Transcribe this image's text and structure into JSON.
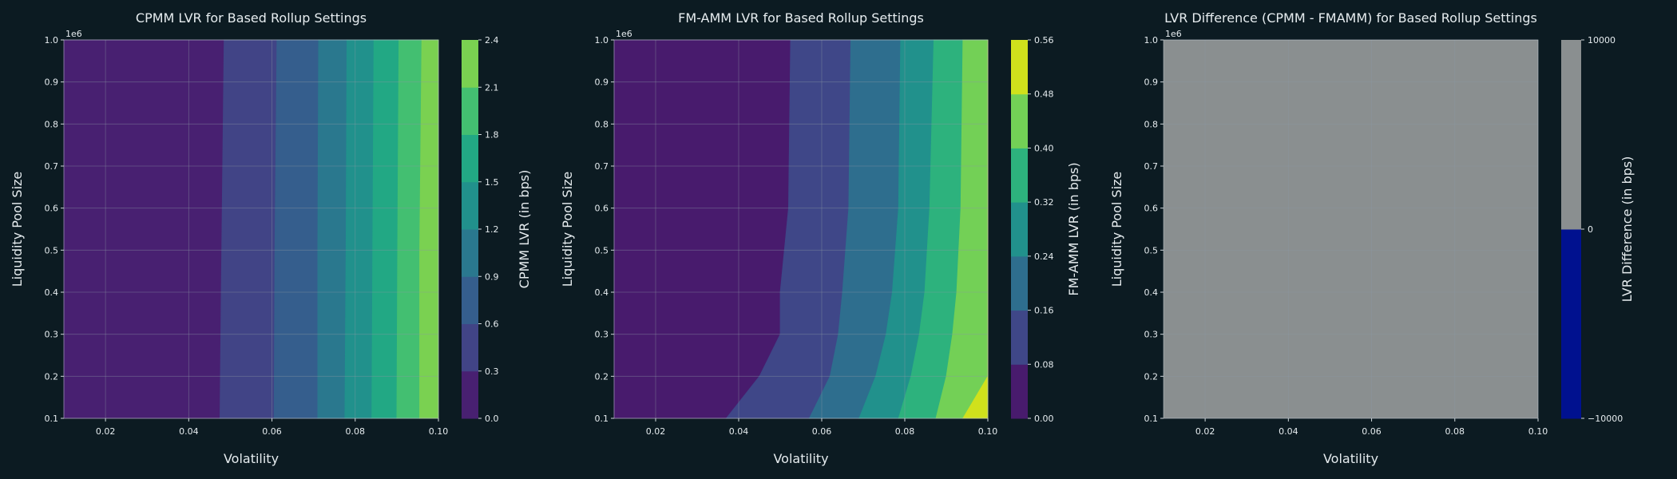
{
  "theme": {
    "background": "#0c1b22",
    "text": "#e6ecef",
    "grid": "#8c9aa3",
    "spine": "#cfd6da",
    "diff_gray": "#8a8f90",
    "diff_blue": "#00118f"
  },
  "chart_data": [
    {
      "type": "heatmap",
      "title": "CPMM LVR for Based Rollup Settings",
      "xlabel": "Volatility",
      "ylabel": "Liquidity Pool Size",
      "y_offset_label": "1e6",
      "colorbar_label": "CPMM LVR (in bps)",
      "x_ticks": [
        "0.02",
        "0.04",
        "0.06",
        "0.08",
        "0.10"
      ],
      "y_ticks": [
        "0.1",
        "0.2",
        "0.3",
        "0.4",
        "0.5",
        "0.6",
        "0.7",
        "0.8",
        "0.9",
        "1.0"
      ],
      "colorbar_ticks": [
        "0.0",
        "0.3",
        "0.6",
        "0.9",
        "1.2",
        "1.5",
        "1.8",
        "2.1",
        "2.4"
      ],
      "xlim": [
        0.01,
        0.1
      ],
      "ylim": [
        0.1,
        1.0
      ],
      "levels": [
        0.0,
        0.3,
        0.6,
        0.9,
        1.2,
        1.5,
        1.8,
        2.1,
        2.4
      ],
      "colors": [
        "#482071",
        "#414486",
        "#355e8d",
        "#2a788e",
        "#21918c",
        "#22a884",
        "#43bf71",
        "#7ad151",
        "#d7e219"
      ],
      "contours": [
        {
          "level": 0.3,
          "points": [
            [
              0.0475,
              0.1
            ],
            [
              0.0478,
              0.4
            ],
            [
              0.0485,
              1.0
            ]
          ]
        },
        {
          "level": 0.6,
          "points": [
            [
              0.0605,
              0.1
            ],
            [
              0.0607,
              0.5
            ],
            [
              0.0612,
              1.0
            ]
          ]
        },
        {
          "level": 0.9,
          "points": [
            [
              0.071,
              0.1
            ],
            [
              0.071,
              0.5
            ],
            [
              0.0712,
              1.0
            ]
          ]
        },
        {
          "level": 1.2,
          "points": [
            [
              0.0775,
              0.1
            ],
            [
              0.0778,
              0.5
            ],
            [
              0.078,
              1.0
            ]
          ]
        },
        {
          "level": 1.5,
          "points": [
            [
              0.084,
              0.1
            ],
            [
              0.0842,
              0.5
            ],
            [
              0.0845,
              1.0
            ]
          ]
        },
        {
          "level": 1.8,
          "points": [
            [
              0.09,
              0.1
            ],
            [
              0.0902,
              0.5
            ],
            [
              0.0905,
              1.0
            ]
          ]
        },
        {
          "level": 2.1,
          "points": [
            [
              0.0955,
              0.1
            ],
            [
              0.0955,
              0.5
            ],
            [
              0.096,
              1.0
            ]
          ]
        }
      ]
    },
    {
      "type": "heatmap",
      "title": "FM-AMM LVR for Based Rollup Settings",
      "xlabel": "Volatility",
      "ylabel": "Liquidity Pool Size",
      "y_offset_label": "1e6",
      "colorbar_label": "FM-AMM LVR (in bps)",
      "x_ticks": [
        "0.02",
        "0.04",
        "0.06",
        "0.08",
        "0.10"
      ],
      "y_ticks": [
        "0.1",
        "0.2",
        "0.3",
        "0.4",
        "0.5",
        "0.6",
        "0.7",
        "0.8",
        "0.9",
        "1.0"
      ],
      "colorbar_ticks": [
        "0.00",
        "0.08",
        "0.16",
        "0.24",
        "0.32",
        "0.40",
        "0.48",
        "0.56"
      ],
      "xlim": [
        0.01,
        0.1
      ],
      "ylim": [
        0.1,
        1.0
      ],
      "levels": [
        0.0,
        0.08,
        0.16,
        0.24,
        0.32,
        0.4,
        0.48,
        0.56
      ],
      "colors": [
        "#481b6d",
        "#3f4788",
        "#2e6e8e",
        "#21918c",
        "#2db27d",
        "#73d056",
        "#d0e11c"
      ],
      "contours": [
        {
          "level": 0.08,
          "points": [
            [
              0.037,
              0.1
            ],
            [
              0.045,
              0.2
            ],
            [
              0.05,
              0.3
            ],
            [
              0.05,
              0.4
            ],
            [
              0.052,
              0.6
            ],
            [
              0.0525,
              1.0
            ]
          ]
        },
        {
          "level": 0.16,
          "points": [
            [
              0.057,
              0.1
            ],
            [
              0.062,
              0.2
            ],
            [
              0.064,
              0.3
            ],
            [
              0.065,
              0.4
            ],
            [
              0.0665,
              0.6
            ],
            [
              0.067,
              1.0
            ]
          ]
        },
        {
          "level": 0.24,
          "points": [
            [
              0.069,
              0.1
            ],
            [
              0.073,
              0.2
            ],
            [
              0.0755,
              0.3
            ],
            [
              0.077,
              0.4
            ],
            [
              0.0785,
              0.6
            ],
            [
              0.079,
              1.0
            ]
          ]
        },
        {
          "level": 0.32,
          "points": [
            [
              0.0785,
              0.1
            ],
            [
              0.0815,
              0.2
            ],
            [
              0.0835,
              0.3
            ],
            [
              0.0848,
              0.4
            ],
            [
              0.086,
              0.6
            ],
            [
              0.087,
              1.0
            ]
          ]
        },
        {
          "level": 0.4,
          "points": [
            [
              0.0875,
              0.1
            ],
            [
              0.09,
              0.2
            ],
            [
              0.0915,
              0.3
            ],
            [
              0.0925,
              0.4
            ],
            [
              0.0935,
              0.6
            ],
            [
              0.094,
              1.0
            ]
          ]
        },
        {
          "level": 0.48,
          "points": [
            [
              0.094,
              0.1
            ],
            [
              0.1,
              0.2
            ]
          ]
        }
      ]
    },
    {
      "type": "heatmap",
      "title": "LVR Difference (CPMM - FMAMM) for Based Rollup Settings",
      "xlabel": "Volatility",
      "ylabel": "Liquidity Pool Size",
      "y_offset_label": "1e6",
      "colorbar_label": "LVR Difference (in bps)",
      "x_ticks": [
        "0.02",
        "0.04",
        "0.06",
        "0.08",
        "0.10"
      ],
      "y_ticks": [
        "0.1",
        "0.2",
        "0.3",
        "0.4",
        "0.5",
        "0.6",
        "0.7",
        "0.8",
        "0.9",
        "1.0"
      ],
      "colorbar_ticks": [
        "−10000",
        "0",
        "10000"
      ],
      "colorbar_levels": [
        -10000,
        0,
        10000
      ],
      "colorbar_colors": [
        "#00118f",
        "#8a8f90"
      ],
      "xlim": [
        0.01,
        0.1
      ],
      "ylim": [
        0.1,
        1.0
      ],
      "fill_color": "#8a8f90"
    }
  ]
}
